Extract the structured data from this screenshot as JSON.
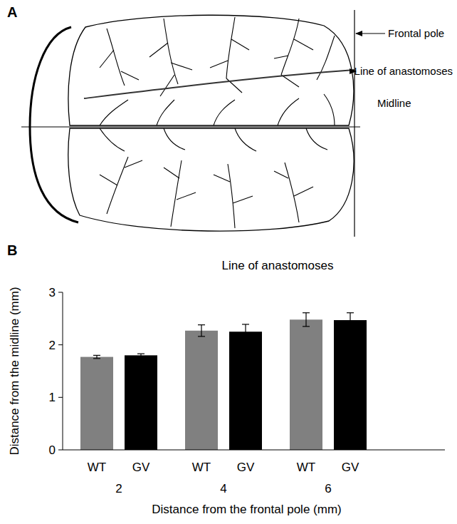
{
  "panel_letters": [
    "A",
    "B"
  ],
  "diagram": {
    "labels": {
      "frontal_pole": "Frontal pole",
      "line": "Line of anastomoses",
      "midline": "Midline"
    }
  },
  "chart_data": {
    "type": "bar",
    "title": "Line of anastomoses",
    "x_label": "Distance from the frontal pole (mm)",
    "y_label": "Distance from the midline (mm)",
    "categories": [
      "2",
      "4",
      "6"
    ],
    "series": [
      {
        "name": "WT",
        "color": "#808080",
        "values": [
          1.77,
          2.27,
          2.48
        ],
        "errors": [
          0.03,
          0.11,
          0.13
        ]
      },
      {
        "name": "GV",
        "color": "#000000",
        "values": [
          1.8,
          2.25,
          2.47
        ],
        "errors": [
          0.03,
          0.14,
          0.14
        ]
      }
    ],
    "ylim": [
      0,
      3
    ],
    "yticks": [
      0,
      1,
      2,
      3
    ],
    "grid": false
  }
}
